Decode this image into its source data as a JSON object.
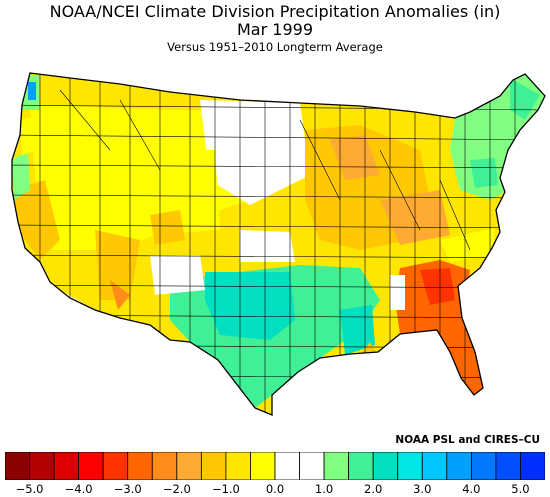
{
  "title": "NOAA/NCEI Climate Division Precipitation Anomalies (in)",
  "subtitle": "Mar 1999",
  "caption": "Versus 1951–2010 Longterm Average",
  "credit": "NOAA PSL and CIRES–CU",
  "legend": {
    "colors": [
      "#8b0000",
      "#b40000",
      "#dc0000",
      "#ff0000",
      "#ff3300",
      "#ff6600",
      "#ff8c1a",
      "#ffaa33",
      "#ffc800",
      "#ffe600",
      "#ffff00",
      "#ffffff",
      "#ffffff",
      "#80ff80",
      "#40f096",
      "#00e0c0",
      "#00e6e6",
      "#00c8ff",
      "#00a0ff",
      "#0078ff",
      "#0050ff",
      "#0030ff"
    ],
    "tick_values": [
      "−5.0",
      "−4.0",
      "−3.0",
      "−2.0",
      "−1.0",
      "0.0",
      "1.0",
      "2.0",
      "3.0",
      "4.0",
      "5.0"
    ]
  }
}
